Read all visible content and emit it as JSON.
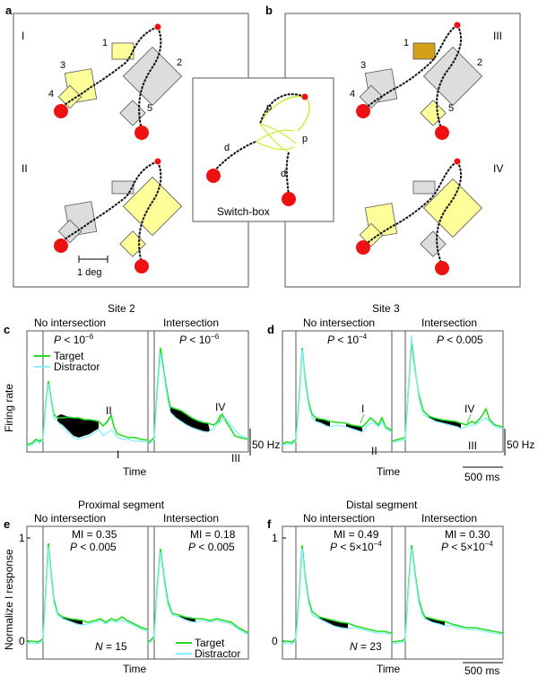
{
  "panel_labels": {
    "a": "a",
    "b": "b",
    "c": "c",
    "d": "d",
    "e": "e",
    "f": "f"
  },
  "panel_a": {
    "conditions": {
      "I": "I",
      "II": "II"
    },
    "rect_labels": {
      "1": "1",
      "2": "2",
      "3": "3",
      "4": "4",
      "5": "5"
    },
    "scale_bar": "1 deg"
  },
  "panel_b": {
    "conditions": {
      "III": "III",
      "IV": "IV"
    },
    "rect_labels": {
      "1": "1",
      "2": "2",
      "3": "3",
      "4": "4",
      "5": "5"
    }
  },
  "switch_box": {
    "title": "Switch-box",
    "p1": "p",
    "p2": "p",
    "d1": "d",
    "d2": "d"
  },
  "colors": {
    "target": "#22dd22",
    "distractor": "#88eeff",
    "fixation": "#ee1111",
    "highlight": "#ffff99",
    "grey": "#dddddd",
    "amber": "#d4a017"
  },
  "row1": {
    "site2": "Site 2",
    "site3": "Site 3",
    "ylabel": "Firing rate",
    "xlabel": "Time",
    "scale_hz_left": "50 Hz",
    "scale_hz_right": "50 Hz",
    "scale_ms": "500 ms",
    "legend": {
      "target": "Target",
      "distractor": "Distractor"
    },
    "c_left": {
      "subtitle": "No intersection",
      "p_sym": "P",
      "p_val": " < 10",
      "p_exp": "−6",
      "marker": "II",
      "roman": "I"
    },
    "c_right": {
      "subtitle": "Intersection",
      "p_sym": "P",
      "p_val": " < 10",
      "p_exp": "−6",
      "marker": "IV",
      "roman": "III"
    },
    "d_left": {
      "subtitle": "No intersection",
      "p_sym": "P",
      "p_val": " < 10",
      "p_exp": "−4",
      "marker": "I",
      "roman": "II"
    },
    "d_right": {
      "subtitle": "Intersection",
      "p_sym": "P",
      "p_val": " < 0.005",
      "marker": "IV",
      "roman": "III"
    }
  },
  "row2": {
    "proximal": "Proximal segment",
    "distal": "Distal segment",
    "ylabel": "Normalize l response",
    "xlabel": "Time",
    "scale_ms": "500 ms",
    "y_ticks": [
      "0",
      "1"
    ],
    "legend": {
      "target": "Target",
      "distractor": "Distractor"
    },
    "e_left": {
      "subtitle": "No intersection",
      "mi": "MI = 0.35",
      "p_sym": "P",
      "p_val": " < 0.005",
      "n_sym": "N",
      "n_val": " = 15"
    },
    "e_right": {
      "subtitle": "Intersection",
      "mi": "MI = 0.18",
      "p_sym": "P",
      "p_val": " < 0.005"
    },
    "f_left": {
      "subtitle": "No intersection",
      "mi": "MI = 0.49",
      "p_sym": "P",
      "p_val": " < 5×10",
      "p_exp": "−4",
      "n_sym": "N",
      "n_val": " = 23"
    },
    "f_right": {
      "subtitle": "Intersection",
      "mi": "MI = 0.30",
      "p_sym": "P",
      "p_val": " < 5×10",
      "p_exp": "−4"
    }
  }
}
